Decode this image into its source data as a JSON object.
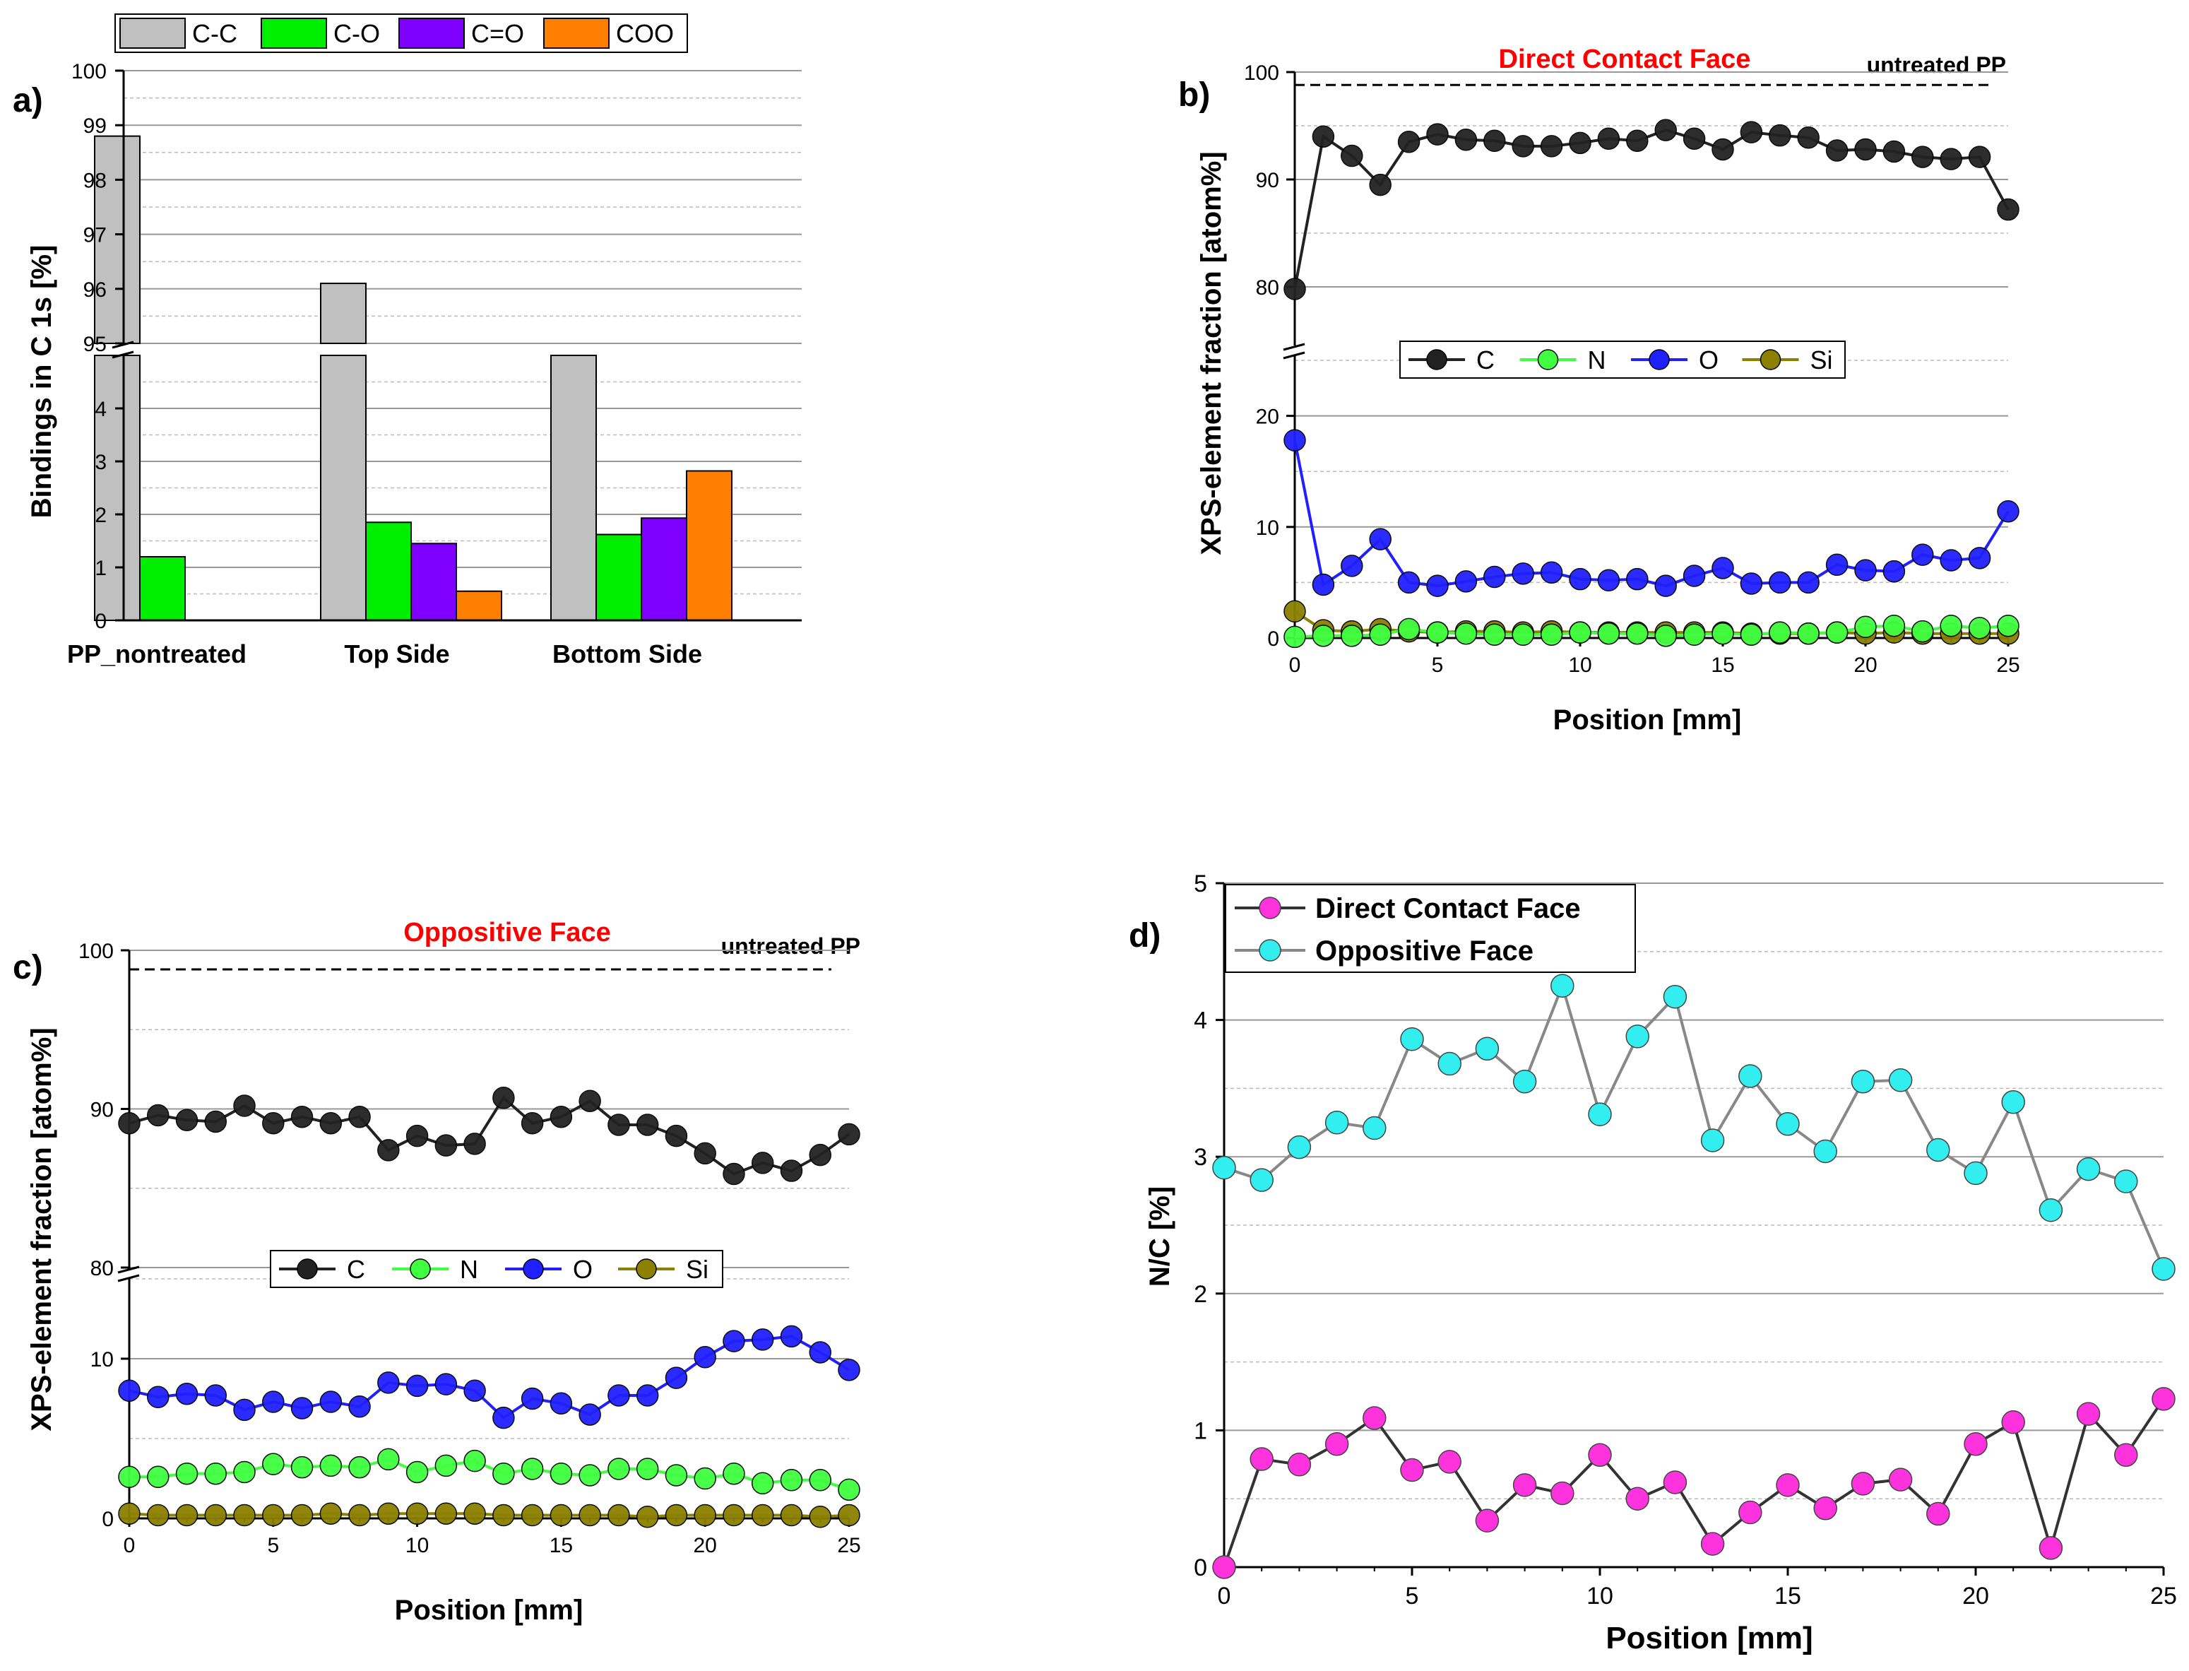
{
  "colors": {
    "cc": "#c0c0c0",
    "co": "#00ee00",
    "ceo": "#8000ff",
    "coo": "#ff8000",
    "C": "#222222",
    "N": "#40ff40",
    "O": "#2020ff",
    "Si": "#8b8000",
    "title": "#ff0000",
    "dcf": "#ff33dd",
    "of": "#33eeee"
  },
  "chart_data": [
    {
      "panel_label": "a)",
      "type": "bar",
      "ylabel": "Bindings in C 1s [%]",
      "categories": [
        "PP_nontreated",
        "Top Side",
        "Bottom Side"
      ],
      "series": [
        {
          "name": "C-C",
          "values": [
            98.8,
            96.1,
            94.9
          ]
        },
        {
          "name": "C-O",
          "values": [
            1.2,
            1.85,
            1.62
          ]
        },
        {
          "name": "C=O",
          "values": [
            0,
            1.45,
            1.93
          ]
        },
        {
          "name": "COO",
          "values": [
            0,
            0.55,
            2.82
          ]
        }
      ],
      "ylim_lower": [
        0,
        5
      ],
      "ylim_upper": [
        95,
        100
      ],
      "yticks_lower": [
        "0",
        "1",
        "2",
        "3",
        "4"
      ],
      "yticks_upper": [
        "95",
        "96",
        "97",
        "98",
        "99",
        "100"
      ]
    },
    {
      "panel_label": "b)",
      "type": "line",
      "title": "Direct Contact Face",
      "reference_label": "untreated PP",
      "reference_value": 98.8,
      "xlabel": "Position [mm]",
      "ylabel": "XPS-element fraction [atom%]",
      "x": [
        0,
        1,
        2,
        3,
        4,
        5,
        6,
        7,
        8,
        9,
        10,
        11,
        12,
        13,
        14,
        15,
        16,
        17,
        18,
        19,
        20,
        21,
        22,
        23,
        24,
        25
      ],
      "series": [
        {
          "name": "C",
          "values": [
            79.8,
            94,
            92.2,
            89.5,
            93.5,
            94.2,
            93.7,
            93.6,
            93.1,
            93.1,
            93.4,
            93.8,
            93.6,
            94.6,
            93.8,
            92.8,
            94.4,
            94.1,
            93.9,
            92.7,
            92.8,
            92.6,
            92.1,
            91.9,
            92.1,
            87.2
          ]
        },
        {
          "name": "N",
          "values": [
            0.1,
            0.2,
            0.2,
            0.3,
            0.8,
            0.5,
            0.4,
            0.3,
            0.3,
            0.3,
            0.5,
            0.4,
            0.4,
            0.2,
            0.3,
            0.4,
            0.3,
            0.5,
            0.4,
            0.5,
            1,
            1.1,
            0.6,
            1.1,
            0.9,
            1.1
          ]
        },
        {
          "name": "O",
          "values": [
            17.8,
            4.8,
            6.5,
            8.9,
            5,
            4.7,
            5.1,
            5.5,
            5.8,
            5.9,
            5.3,
            5.2,
            5.3,
            4.7,
            5.6,
            6.3,
            4.9,
            5,
            5,
            6.6,
            6.1,
            6,
            7.5,
            7,
            7.2,
            11.4
          ]
        },
        {
          "name": "Si",
          "values": [
            2.4,
            0.7,
            0.6,
            0.8,
            0.6,
            0.5,
            0.6,
            0.6,
            0.5,
            0.6,
            0.5,
            0.5,
            0.5,
            0.5,
            0.5,
            0.5,
            0.4,
            0.4,
            0.4,
            0.5,
            0.4,
            0.5,
            0.4,
            0.4,
            0.4,
            0.4
          ]
        }
      ],
      "xticks": [
        "0",
        "5",
        "10",
        "15",
        "20",
        "25"
      ],
      "yticks_lower": [
        "0",
        "10",
        "20"
      ],
      "yticks_upper": [
        "80",
        "90",
        "100"
      ],
      "ylim_lower": [
        0,
        25
      ],
      "ylim_upper": [
        75,
        100
      ]
    },
    {
      "panel_label": "c)",
      "type": "line",
      "title": "Oppositive Face",
      "reference_label": "untreated PP",
      "reference_value": 98.8,
      "xlabel": "Position [mm]",
      "ylabel": "XPS-element fraction [atom%]",
      "x": [
        0,
        1,
        2,
        3,
        4,
        5,
        6,
        7,
        8,
        9,
        10,
        11,
        12,
        13,
        14,
        15,
        16,
        17,
        18,
        19,
        20,
        21,
        22,
        23,
        24,
        25
      ],
      "series": [
        {
          "name": "C",
          "values": [
            89.1,
            89.6,
            89.3,
            89.2,
            90.2,
            89.1,
            89.5,
            89.1,
            89.5,
            87.4,
            88.3,
            87.7,
            87.8,
            90.7,
            89.1,
            89.5,
            90.5,
            89,
            89,
            88.3,
            87.2,
            85.9,
            86.6,
            86.1,
            87.1,
            88.4
          ]
        },
        {
          "name": "N",
          "values": [
            2.6,
            2.6,
            2.8,
            2.8,
            2.9,
            3.4,
            3.2,
            3.3,
            3.2,
            3.7,
            2.9,
            3.3,
            3.6,
            2.8,
            3.1,
            2.8,
            2.7,
            3.1,
            3.1,
            2.7,
            2.5,
            2.8,
            2.2,
            2.4,
            2.4,
            1.8
          ]
        },
        {
          "name": "O",
          "values": [
            8,
            7.6,
            7.8,
            7.7,
            6.8,
            7.3,
            6.9,
            7.3,
            7,
            8.5,
            8.3,
            8.4,
            8,
            6.3,
            7.5,
            7.2,
            6.5,
            7.7,
            7.7,
            8.8,
            10.1,
            11.1,
            11.2,
            11.4,
            10.4,
            9.3
          ]
        },
        {
          "name": "Si",
          "values": [
            0.3,
            0.2,
            0.2,
            0.2,
            0.2,
            0.2,
            0.2,
            0.3,
            0.2,
            0.3,
            0.3,
            0.3,
            0.3,
            0.2,
            0.2,
            0.2,
            0.2,
            0.2,
            0.1,
            0.2,
            0.2,
            0.2,
            0.2,
            0.2,
            0.1,
            0.2
          ]
        }
      ],
      "xticks": [
        "0",
        "5",
        "10",
        "15",
        "20",
        "25"
      ],
      "yticks_lower": [
        "0",
        "10"
      ],
      "yticks_upper": [
        "80",
        "90",
        "100"
      ],
      "ylim_lower": [
        0,
        15
      ],
      "ylim_upper": [
        80,
        100
      ]
    },
    {
      "panel_label": "d)",
      "type": "line",
      "xlabel": "Position [mm]",
      "ylabel": "N/C [%]",
      "x": [
        0,
        1,
        2,
        3,
        4,
        5,
        6,
        7,
        8,
        9,
        10,
        11,
        12,
        13,
        14,
        15,
        16,
        17,
        18,
        19,
        20,
        21,
        22,
        23,
        24,
        25
      ],
      "series": [
        {
          "name": "Direct Contact Face",
          "values": [
            0,
            0.79,
            0.75,
            0.9,
            1.09,
            0.71,
            0.77,
            0.34,
            0.6,
            0.54,
            0.82,
            0.5,
            0.62,
            0.17,
            0.4,
            0.6,
            0.43,
            0.61,
            0.64,
            0.39,
            0.9,
            1.06,
            0.14,
            1.12,
            0.82,
            1.23
          ]
        },
        {
          "name": "Oppositive Face",
          "values": [
            2.92,
            2.83,
            3.07,
            3.25,
            3.21,
            3.86,
            3.68,
            3.79,
            3.55,
            4.25,
            3.31,
            3.88,
            4.17,
            3.12,
            3.59,
            3.24,
            3.04,
            3.55,
            3.56,
            3.05,
            2.88,
            3.4,
            2.61,
            2.91,
            2.82,
            2.18
          ]
        }
      ],
      "xticks": [
        "0",
        "5",
        "10",
        "15",
        "20",
        "25"
      ],
      "yticks": [
        "0",
        "1",
        "2",
        "3",
        "4",
        "5"
      ],
      "ylim": [
        0,
        5
      ]
    }
  ]
}
